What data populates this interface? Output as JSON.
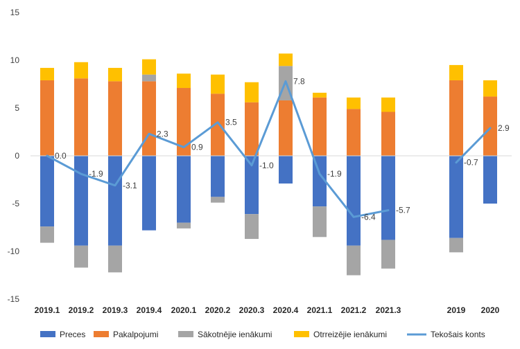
{
  "chart_data": {
    "type": "bar",
    "stacked": true,
    "categories": [
      "2019.1",
      "2019.2",
      "2019.3",
      "2019.4",
      "2020.1",
      "2020.2",
      "2020.3",
      "2020.4",
      "2021.1",
      "2021.2",
      "2021.3",
      "2019",
      "2020"
    ],
    "series": [
      {
        "name": "Preces",
        "kind": "bar",
        "color": "#4472C4",
        "values": [
          -7.4,
          -9.4,
          -9.4,
          -7.8,
          -7.0,
          -4.3,
          -6.1,
          -2.9,
          -5.3,
          -9.4,
          -8.8,
          -8.6,
          -5.0
        ]
      },
      {
        "name": "Pakalpojumi",
        "kind": "bar",
        "color": "#ED7D31",
        "values": [
          7.9,
          8.1,
          7.8,
          7.8,
          7.1,
          6.5,
          5.6,
          5.8,
          6.1,
          4.9,
          4.6,
          7.9,
          6.2
        ]
      },
      {
        "name": "Sākotnējie ienākumi",
        "kind": "bar",
        "color": "#A5A5A5",
        "values": [
          -1.7,
          -2.3,
          -2.8,
          0.7,
          -0.6,
          -0.6,
          -2.6,
          3.6,
          -3.2,
          -3.1,
          -3.0,
          -1.5,
          0.0
        ]
      },
      {
        "name": "Otrreizējie ienākumi",
        "kind": "bar",
        "color": "#FFC000",
        "values": [
          1.3,
          1.7,
          1.4,
          1.6,
          1.5,
          2.0,
          2.1,
          1.3,
          0.5,
          1.2,
          1.5,
          1.6,
          1.7
        ]
      },
      {
        "name": "Tekošais konts",
        "kind": "line",
        "color": "#5B9BD5",
        "values": [
          0.0,
          -1.9,
          -3.1,
          2.3,
          0.9,
          3.5,
          -1.0,
          7.8,
          -1.9,
          -6.4,
          -5.7,
          -0.7,
          2.9
        ],
        "labels": [
          "0.0",
          "-1.9",
          "-3.1",
          "2.3",
          "0.9",
          "3.5",
          "-1.0",
          "7.8",
          "-1.9",
          "-6.4",
          "-5.7",
          "-0.7",
          "2.9"
        ]
      }
    ],
    "line_segments": [
      [
        0,
        10
      ],
      [
        11,
        12
      ]
    ],
    "ylim": [
      -15,
      15
    ],
    "yticks": [
      15,
      10,
      5,
      0,
      -5,
      -10,
      -15
    ],
    "ytick_labels": [
      "15",
      "10",
      "5",
      "0",
      "-5",
      "-10",
      "-15"
    ],
    "legend_position": "bottom",
    "gridlines": false,
    "title": "",
    "xlabel": "",
    "ylabel": ""
  }
}
